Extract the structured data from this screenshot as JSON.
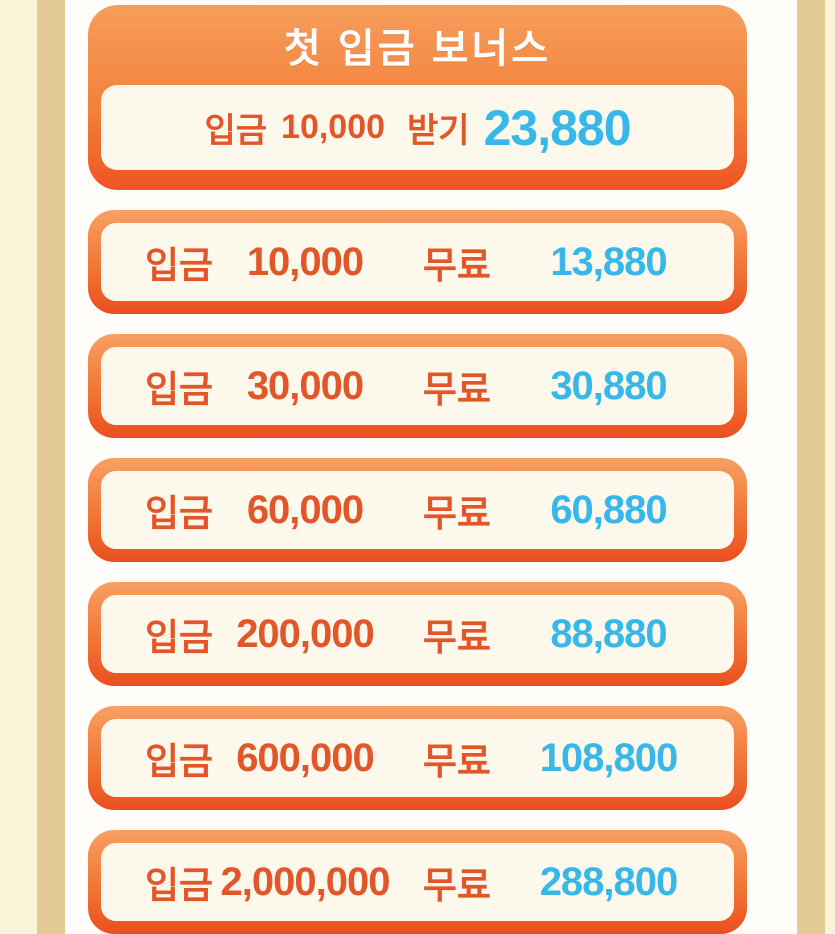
{
  "header_card": {
    "title": "첫 입금 보너스",
    "claim_row": {
      "deposit_label": "입금",
      "deposit_amount": "10,000",
      "claim_label": "받기",
      "bonus_value": "23,880"
    }
  },
  "bonus_rows": [
    {
      "deposit_label": "입금",
      "deposit_amount": "10,000",
      "free_label": "무료",
      "bonus_value": "13,880"
    },
    {
      "deposit_label": "입금",
      "deposit_amount": "30,000",
      "free_label": "무료",
      "bonus_value": "30,880"
    },
    {
      "deposit_label": "입금",
      "deposit_amount": "60,000",
      "free_label": "무료",
      "bonus_value": "60,880"
    },
    {
      "deposit_label": "입금",
      "deposit_amount": "200,000",
      "free_label": "무료",
      "bonus_value": "88,880"
    },
    {
      "deposit_label": "입금",
      "deposit_amount": "600,000",
      "free_label": "무료",
      "bonus_value": "108,800"
    },
    {
      "deposit_label": "입금",
      "deposit_amount": "2,000,000",
      "free_label": "무료",
      "bonus_value": "288,800"
    }
  ],
  "colors": {
    "accent_orange_text": "#E2572A",
    "bonus_value_cyan": "#38B8E8",
    "card_border_top": "#F8A063",
    "card_border_bottom": "#EB4F1F",
    "panel_cream": "#FDF8EC",
    "side_strip_cream": "#FBF3D8",
    "side_strip_tan": "#E3CB93",
    "title_text": "#FFFFFF"
  }
}
